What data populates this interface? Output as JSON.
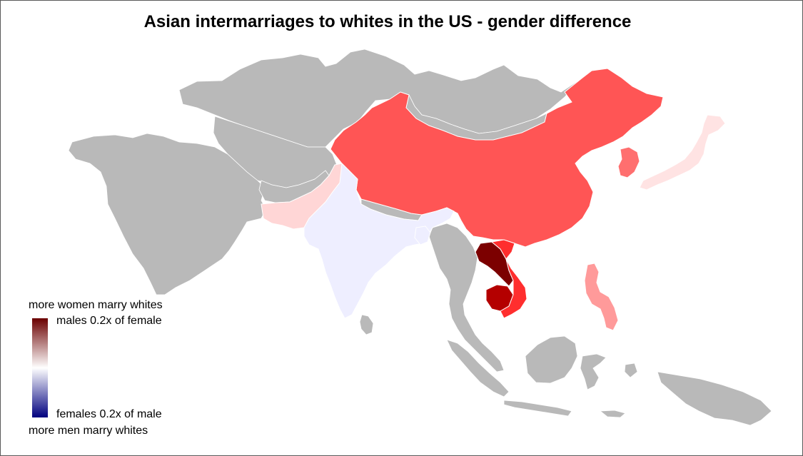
{
  "title": "Asian intermarriages to whites in the US - gender difference",
  "legend": {
    "top_label": "more women marry whites",
    "max_label": "males 0.2x of female",
    "min_label": "females 0.2x of male",
    "bottom_label": "more men marry whites",
    "gradient_colors": [
      "#6b0000",
      "#ffffff",
      "#00007f"
    ]
  },
  "colors": {
    "no_data": "#b9b9b9",
    "border": "#ffffff"
  },
  "map_data": {
    "no_data_regions": [
      "Russia",
      "Kazakhstan",
      "Mongolia",
      "Turkey",
      "Iran",
      "Saudi Arabia",
      "Afghanistan",
      "Myanmar",
      "Thailand",
      "Indonesia",
      "Papua New Guinea",
      "Malaysia",
      "Nepal",
      "Sri Lanka"
    ],
    "countries": [
      {
        "name": "China",
        "color": "#ff5555"
      },
      {
        "name": "Korea",
        "color": "#ff6f6f"
      },
      {
        "name": "Japan",
        "color": "#ffe3e3"
      },
      {
        "name": "Pakistan",
        "color": "#ffd6d6"
      },
      {
        "name": "India",
        "color": "#eeeeff"
      },
      {
        "name": "Bangladesh",
        "color": "#eeeeff"
      },
      {
        "name": "Laos",
        "color": "#7c0000"
      },
      {
        "name": "Cambodia",
        "color": "#b40000"
      },
      {
        "name": "Vietnam",
        "color": "#ff2e2e"
      },
      {
        "name": "Philippines",
        "color": "#ff9a9a"
      }
    ]
  }
}
